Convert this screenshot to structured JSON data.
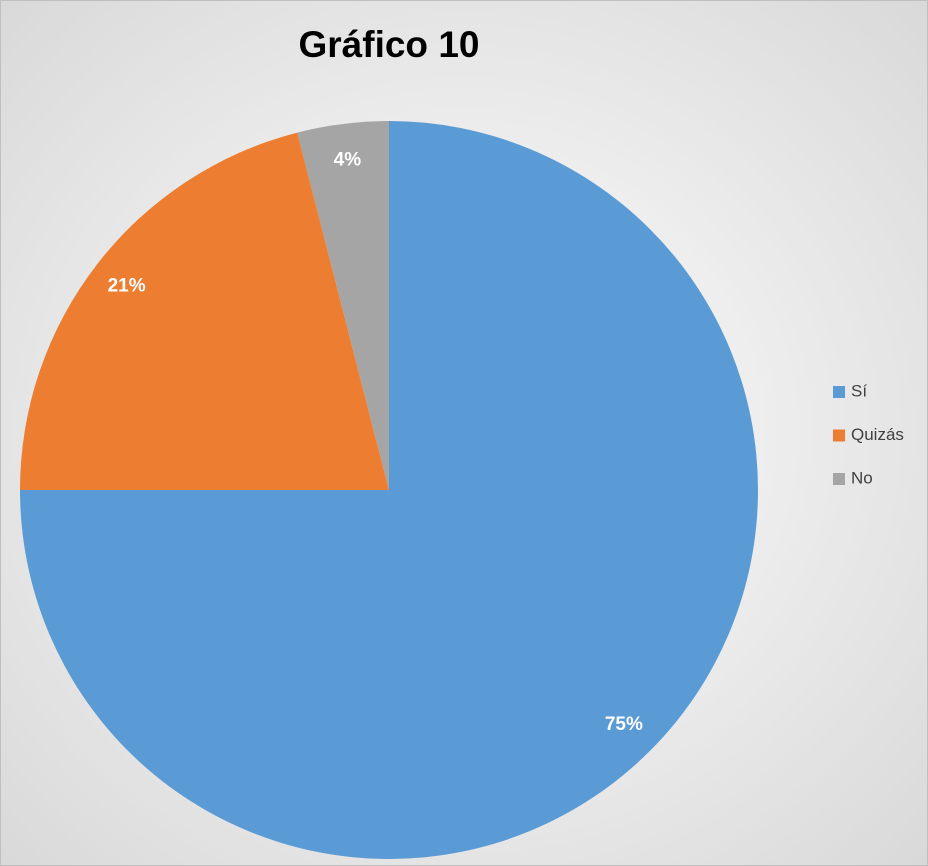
{
  "chart_data": {
    "type": "pie",
    "title": "Gráfico 10",
    "categories": [
      "Sí",
      "Quizás",
      "No"
    ],
    "values": [
      75,
      21,
      4
    ],
    "value_labels": [
      "75%",
      "21%",
      "4%"
    ],
    "colors": [
      "#5b9bd5",
      "#ed7d31",
      "#a5a5a5"
    ],
    "legend": "right"
  }
}
